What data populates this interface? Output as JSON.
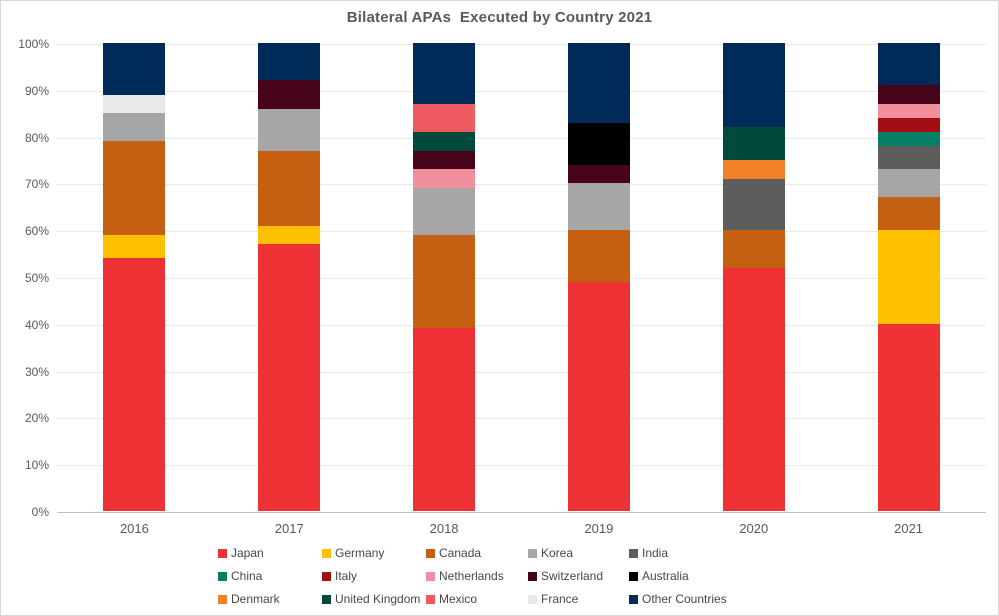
{
  "chart": {
    "title": "Bilateral APAs  Executed by Country 2021"
  },
  "chart_data": {
    "type": "bar",
    "stacked": true,
    "title": "Bilateral APAs  Executed by Country 2021",
    "xlabel": "",
    "ylabel": "",
    "ylim": [
      0,
      100
    ],
    "grid": true,
    "legend_position": "bottom",
    "units": "percent",
    "categories": [
      "2016",
      "2017",
      "2018",
      "2019",
      "2020",
      "2021"
    ],
    "ytick_labels": [
      "0%",
      "10%",
      "20%",
      "30%",
      "40%",
      "50%",
      "60%",
      "70%",
      "80%",
      "90%",
      "100%"
    ],
    "series": [
      {
        "name": "Japan",
        "color": "#ee3135",
        "values": [
          54,
          57,
          39,
          49,
          52,
          40
        ]
      },
      {
        "name": "Germany",
        "color": "#ffc000",
        "values": [
          5,
          4,
          0,
          0,
          0,
          20
        ]
      },
      {
        "name": "Canada",
        "color": "#c55f11",
        "values": [
          20,
          16,
          20,
          11,
          8,
          7
        ]
      },
      {
        "name": "Korea",
        "color": "#a6a6a6",
        "values": [
          6,
          9,
          10,
          10,
          0,
          6
        ]
      },
      {
        "name": "India",
        "color": "#5d5d5d",
        "values": [
          0,
          0,
          0,
          0,
          11,
          5
        ]
      },
      {
        "name": "China",
        "color": "#077e66",
        "values": [
          0,
          0,
          0,
          0,
          0,
          3
        ]
      },
      {
        "name": "Italy",
        "color": "#a30d13",
        "values": [
          0,
          0,
          0,
          0,
          0,
          3
        ]
      },
      {
        "name": "Netherlands",
        "color": "#f18f9c",
        "values": [
          0,
          0,
          4,
          0,
          0,
          3
        ]
      },
      {
        "name": "Switzerland",
        "color": "#470418",
        "values": [
          0,
          6,
          4,
          4,
          0,
          4
        ]
      },
      {
        "name": "Australia",
        "color": "#000000",
        "values": [
          0,
          0,
          0,
          9,
          0,
          0
        ]
      },
      {
        "name": "Denmark",
        "color": "#f18227",
        "values": [
          0,
          0,
          0,
          0,
          4,
          0
        ]
      },
      {
        "name": "United Kingdom",
        "color": "#004a3c",
        "values": [
          0,
          0,
          4,
          0,
          7,
          0
        ]
      },
      {
        "name": "Mexico",
        "color": "#ef5a60",
        "values": [
          0,
          0,
          6,
          0,
          0,
          0
        ]
      },
      {
        "name": "France",
        "color": "#e9e9e9",
        "values": [
          4,
          0,
          0,
          0,
          0,
          0
        ]
      },
      {
        "name": "Other Countries",
        "color": "#002a58",
        "values": [
          11,
          8,
          13,
          17,
          18,
          9
        ]
      }
    ]
  },
  "style_colors": {
    "gridline": "#e9e9e9",
    "axis_line": "#c0c0c0",
    "frame_border": "#d6d6d6",
    "title_text": "#595959",
    "tick_text": "#595959",
    "legend_text": "#474747",
    "background": "#ffffff"
  }
}
